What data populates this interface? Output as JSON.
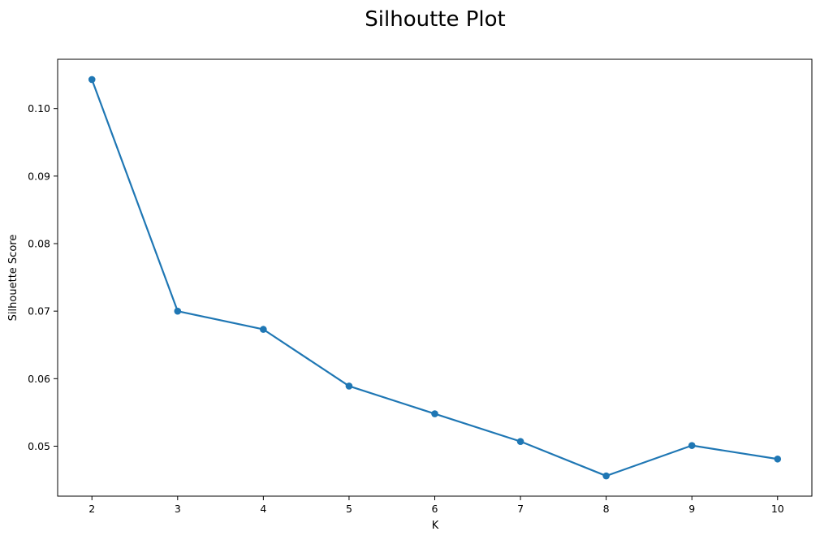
{
  "chart_data": {
    "type": "line",
    "title": "Silhoutte Plot",
    "xlabel": "K",
    "ylabel": "Silhouette Score",
    "x": [
      2,
      3,
      4,
      5,
      6,
      7,
      8,
      9,
      10
    ],
    "series": [
      {
        "values": [
          0.1043,
          0.07,
          0.0673,
          0.0589,
          0.0548,
          0.0507,
          0.0456,
          0.0501,
          0.0481
        ],
        "color": "#1f77b4",
        "marker": "circle"
      }
    ],
    "xticks": [
      "2",
      "3",
      "4",
      "5",
      "6",
      "7",
      "8",
      "9",
      "10"
    ],
    "yticks": [
      "0.05",
      "0.06",
      "0.07",
      "0.08",
      "0.09",
      "0.10"
    ],
    "xlim": [
      1.6,
      10.4
    ],
    "ylim": [
      0.0426,
      0.1073
    ],
    "grid": false,
    "legend": "none"
  }
}
